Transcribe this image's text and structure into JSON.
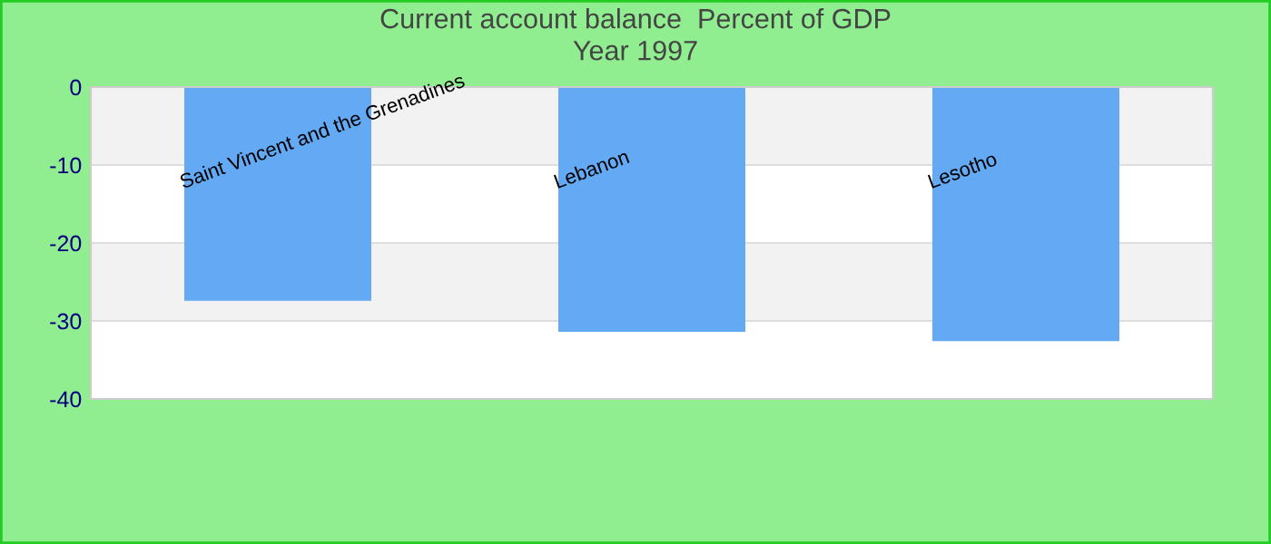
{
  "chart_data": {
    "type": "bar",
    "title": "Current account balance  Percent of GDP\nYear 1997",
    "categories": [
      "Saint Vincent and the Grenadines",
      "Lebanon",
      "Lesotho"
    ],
    "series": [
      {
        "color": "#63a9f4",
        "values": [
          -27.4,
          -31.4,
          -32.6
        ]
      }
    ],
    "ylim": [
      -40,
      0
    ],
    "yticks": [
      -40,
      -30,
      -20,
      -10,
      0
    ],
    "grid": "y",
    "legend": false
  }
}
